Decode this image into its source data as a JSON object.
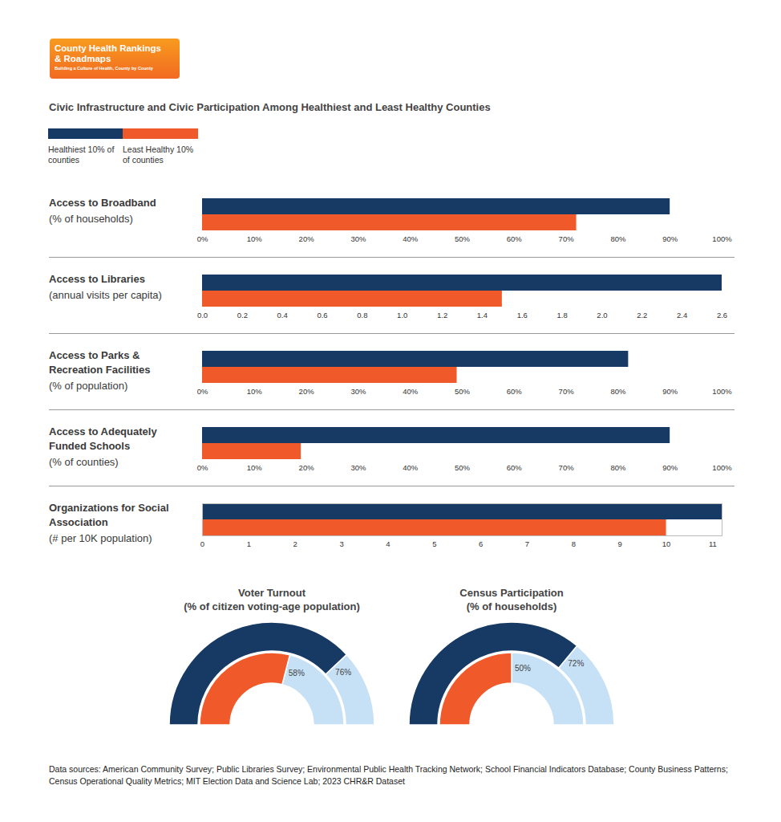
{
  "header": {
    "logo_name": "County Health Rankings & Roadmaps",
    "logo_tagline": "Building a Culture of Health, County by County",
    "title": "Civic Infrastructure and Civic Participation Among Healthiest and Least Healthy Counties"
  },
  "chart_data": [
    {
      "type": "bar",
      "orientation": "horizontal",
      "title": "Access to Broadband",
      "subtitle": "(% of households)",
      "series": [
        {
          "name": "Healthiest 10% of counties",
          "color": "#173a64",
          "values": [
            90
          ]
        },
        {
          "name": "Least Healthy 10% of counties",
          "color": "#f05a2a",
          "values": [
            72
          ]
        }
      ],
      "xlim": [
        0,
        100
      ],
      "xticks": [
        {
          "value": 0,
          "label": "0%"
        },
        {
          "value": 10,
          "label": "10%"
        },
        {
          "value": 20,
          "label": "20%"
        },
        {
          "value": 30,
          "label": "30%"
        },
        {
          "value": 40,
          "label": "40%"
        },
        {
          "value": 50,
          "label": "50%"
        },
        {
          "value": 60,
          "label": "60%"
        },
        {
          "value": 70,
          "label": "70%"
        },
        {
          "value": 80,
          "label": "80%"
        },
        {
          "value": 90,
          "label": "90%"
        },
        {
          "value": 100,
          "label": "100%"
        }
      ]
    },
    {
      "type": "bar",
      "orientation": "horizontal",
      "title": "Access to Libraries",
      "subtitle": "(annual visits per capita)",
      "series": [
        {
          "name": "Healthiest 10% of counties",
          "color": "#173a64",
          "values": [
            2.6
          ]
        },
        {
          "name": "Least Healthy 10% of counties",
          "color": "#f05a2a",
          "values": [
            1.5
          ]
        }
      ],
      "xlim": [
        0,
        2.6
      ],
      "xticks": [
        {
          "value": 0,
          "label": "0.0"
        },
        0.2,
        0.4,
        0.6,
        0.8,
        {
          "value": 1,
          "label": "1.0"
        },
        1.2,
        1.4,
        1.6,
        1.8,
        {
          "value": 2,
          "label": "2.0"
        },
        2.2,
        2.4,
        2.6
      ]
    },
    {
      "type": "bar",
      "orientation": "horizontal",
      "title": "Access to Parks & Recreation Facilities",
      "subtitle": "(% of population)",
      "series": [
        {
          "name": "Healthiest 10% of counties",
          "color": "#173a64",
          "values": [
            82
          ]
        },
        {
          "name": "Least Healthy 10% of counties",
          "color": "#f05a2a",
          "values": [
            49
          ]
        }
      ],
      "xlim": [
        0,
        100
      ],
      "xticks": [
        {
          "value": 0,
          "label": "0%"
        },
        {
          "value": 10,
          "label": "10%"
        },
        {
          "value": 20,
          "label": "20%"
        },
        {
          "value": 30,
          "label": "30%"
        },
        {
          "value": 40,
          "label": "40%"
        },
        {
          "value": 50,
          "label": "50%"
        },
        {
          "value": 60,
          "label": "60%"
        },
        {
          "value": 70,
          "label": "70%"
        },
        {
          "value": 80,
          "label": "80%"
        },
        {
          "value": 90,
          "label": "90%"
        },
        {
          "value": 100,
          "label": "100%"
        }
      ]
    },
    {
      "type": "bar",
      "orientation": "horizontal",
      "title": "Access to Adequately Funded Schools",
      "subtitle": "(% of counties)",
      "series": [
        {
          "name": "Healthiest 10% of counties",
          "color": "#173a64",
          "values": [
            90
          ]
        },
        {
          "name": "Least Healthy 10% of counties",
          "color": "#f05a2a",
          "values": [
            19
          ]
        }
      ],
      "xlim": [
        0,
        100
      ],
      "xticks": [
        {
          "value": 0,
          "label": "0%"
        },
        {
          "value": 10,
          "label": "10%"
        },
        {
          "value": 20,
          "label": "20%"
        },
        {
          "value": 30,
          "label": "30%"
        },
        {
          "value": 40,
          "label": "40%"
        },
        {
          "value": 50,
          "label": "50%"
        },
        {
          "value": 60,
          "label": "60%"
        },
        {
          "value": 70,
          "label": "70%"
        },
        {
          "value": 80,
          "label": "80%"
        },
        {
          "value": 90,
          "label": "90%"
        },
        {
          "value": 100,
          "label": "100%"
        }
      ]
    },
    {
      "type": "bar",
      "orientation": "horizontal",
      "title": "Organizations for Social Association",
      "subtitle": "(# per 10K population)",
      "series": [
        {
          "name": "Healthiest 10% of counties",
          "color": "#173a64",
          "values": [
            11.2
          ]
        },
        {
          "name": "Least Healthy 10% of counties",
          "color": "#f05a2a",
          "values": [
            10
          ]
        }
      ],
      "xlim": [
        0,
        11.2
      ],
      "xticks": [
        0,
        1,
        2,
        3,
        4,
        5,
        6,
        7,
        8,
        9,
        10,
        11
      ]
    },
    {
      "type": "gauge",
      "title": "Voter Turnout",
      "subtitle": "(% of citizen voting-age population)",
      "data_labels": true,
      "ylim": [
        0,
        100
      ],
      "series": [
        {
          "name": "Healthiest 10% of counties",
          "color": "#173a64",
          "values": [
            76
          ],
          "value_labels": [
            "76%"
          ]
        },
        {
          "name": "Least Healthy 10% of counties",
          "color": "#f05a2a",
          "values": [
            58
          ],
          "value_labels": [
            "58%"
          ]
        }
      ]
    },
    {
      "type": "gauge",
      "title": "Census Participation",
      "subtitle": "(% of households)",
      "data_labels": true,
      "ylim": [
        0,
        100
      ],
      "series": [
        {
          "name": "Healthiest 10% of counties",
          "color": "#173a64",
          "values": [
            72
          ],
          "value_labels": [
            "72%"
          ]
        },
        {
          "name": "Least Healthy 10% of counties",
          "color": "#f05a2a",
          "values": [
            50
          ],
          "value_labels": [
            "50%"
          ]
        }
      ]
    }
  ],
  "footer": "Data sources: American Community Survey; Public Libraries Survey; Environmental Public Health Tracking Network; School Financial Indicators Database; County Business Patterns; Census Operational Quality Metrics; MIT Election Data and Science Lab; 2023 CHR&R Dataset"
}
